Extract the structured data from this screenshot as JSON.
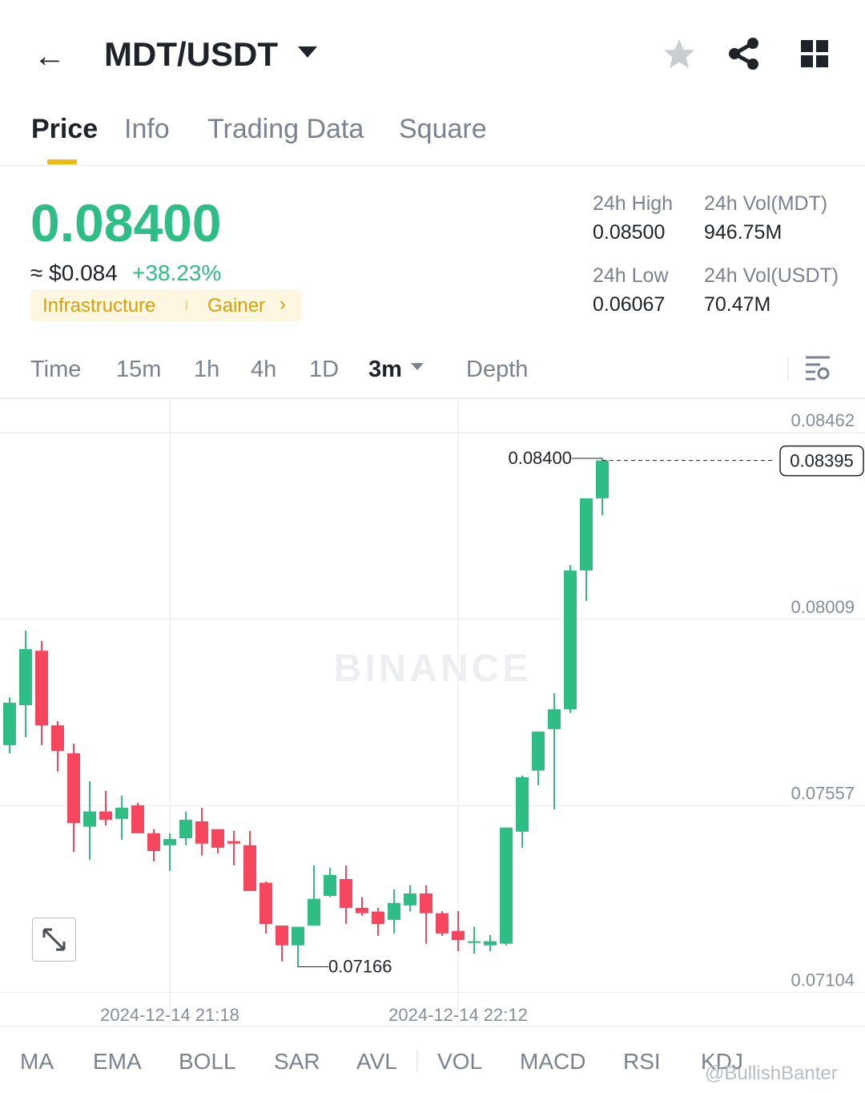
{
  "header": {
    "pair": "MDT/USDT"
  },
  "tabs": [
    "Price",
    "Info",
    "Trading Data",
    "Square"
  ],
  "price": {
    "last": "0.08400",
    "fiat": "≈ $0.084",
    "change": "+38.23%",
    "tags": [
      "Infrastructure",
      "Gainer"
    ]
  },
  "stats": [
    {
      "label": "24h High",
      "value": "0.08500"
    },
    {
      "label": "24h Vol(MDT)",
      "value": "946.75M"
    },
    {
      "label": "24h Low",
      "value": "0.06067"
    },
    {
      "label": "24h Vol(USDT)",
      "value": "70.47M"
    }
  ],
  "intervals": [
    "Time",
    "15m",
    "1h",
    "4h",
    "1D",
    "3m",
    "Depth"
  ],
  "chart_data": {
    "type": "candlestick",
    "categories": [
      null,
      null,
      null,
      null,
      null,
      null,
      null,
      null,
      null,
      null,
      "2024-12-14 21:18",
      null,
      null,
      null,
      null,
      null,
      null,
      null,
      null,
      null,
      null,
      null,
      null,
      null,
      null,
      null,
      null,
      null,
      "2024-12-14 22:12",
      null,
      null,
      null,
      null,
      null,
      null,
      null,
      null,
      null
    ],
    "open": [
      0.07704,
      0.07801,
      0.07933,
      0.07752,
      0.07684,
      0.07506,
      0.07543,
      0.07525,
      0.07558,
      0.0749,
      0.07461,
      0.07478,
      0.07519,
      0.075,
      0.07471,
      0.07461,
      0.0737,
      0.07266,
      0.07218,
      0.07266,
      0.07338,
      0.07379,
      0.07309,
      0.073,
      0.0728,
      0.07315,
      0.07344,
      0.07296,
      0.07253,
      0.07224,
      0.07218,
      0.07222,
      0.07494,
      0.07642,
      0.07743,
      0.07791,
      0.08128,
      0.08303
    ],
    "high": [
      0.0782,
      0.07982,
      0.07957,
      0.07762,
      0.07708,
      0.07616,
      0.07593,
      0.07581,
      0.07564,
      0.075,
      0.0749,
      0.07543,
      0.07552,
      0.075,
      0.07496,
      0.07496,
      0.07373,
      0.07266,
      0.07263,
      0.07412,
      0.07406,
      0.07412,
      0.07335,
      0.07309,
      0.07354,
      0.07364,
      0.07364,
      0.07301,
      0.07301,
      0.07263,
      0.07243,
      0.07504,
      0.0763,
      0.07737,
      0.0783,
      0.08141,
      0.08303,
      0.084
    ],
    "low": [
      0.07684,
      0.07723,
      0.07704,
      0.0764,
      0.07445,
      0.07426,
      0.07509,
      0.07474,
      0.0749,
      0.07422,
      0.07399,
      0.07461,
      0.07436,
      0.07441,
      0.07412,
      0.0735,
      0.07247,
      0.07179,
      0.07166,
      0.07266,
      0.07335,
      0.0727,
      0.0729,
      0.07241,
      0.07247,
      0.073,
      0.07222,
      0.07241,
      0.07204,
      0.07198,
      0.07204,
      0.07218,
      0.07455,
      0.07607,
      0.07548,
      0.07782,
      0.08054,
      0.08262
    ],
    "close": [
      0.07807,
      0.07937,
      0.07752,
      0.0769,
      0.07515,
      0.07543,
      0.07523,
      0.07552,
      0.0749,
      0.07447,
      0.07476,
      0.07523,
      0.07465,
      0.07455,
      0.07465,
      0.0735,
      0.0727,
      0.07218,
      0.07263,
      0.07331,
      0.07389,
      0.07309,
      0.07296,
      0.0727,
      0.07321,
      0.07344,
      0.07296,
      0.07247,
      0.07231,
      0.07228,
      0.07228,
      0.07504,
      0.07626,
      0.07737,
      0.07791,
      0.08128,
      0.08303,
      0.08395
    ],
    "up_color": "#2ebd85",
    "down_color": "#f6465d",
    "ylim": [
      0.07023,
      0.08544
    ],
    "yticks": [
      0.07104,
      0.07557,
      0.08009,
      0.08462
    ],
    "grid": true,
    "annotations": [
      {
        "value": 0.084,
        "label": "0.08400"
      },
      {
        "value": 0.07166,
        "label": "0.07166"
      }
    ],
    "last_price": {
      "value": 0.08395,
      "label": "0.08395"
    }
  },
  "indicators": [
    "MA",
    "EMA",
    "BOLL",
    "SAR",
    "AVL",
    "VOL",
    "MACD",
    "RSI",
    "KDJ"
  ],
  "watermarks": [
    "BINANCE",
    "@BullishBanter"
  ]
}
